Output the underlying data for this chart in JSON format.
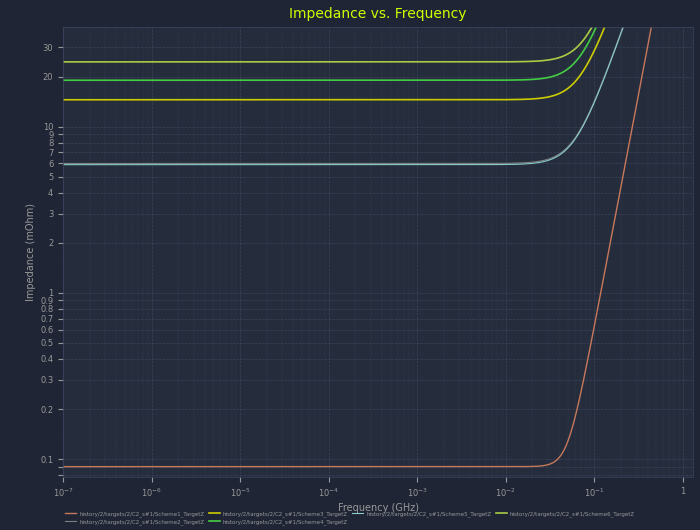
{
  "title": "Impedance vs. Frequency",
  "xlabel": "Frequency (GHz)",
  "ylabel": "Impedance (mOhm)",
  "bg_color": "#1f2535",
  "plot_bg_color": "#252d3d",
  "grid_color": "#3d4560",
  "title_color": "#ccff00",
  "axis_label_color": "#999999",
  "tick_color": "#999999",
  "lines": [
    {
      "label": "history/2/targets/2/C2_s#1/Scheme1_TargetZ",
      "color": "#c8785a",
      "flat_val": 0.09,
      "rise_freq": 0.05,
      "power": 2.8,
      "lw": 1.0
    },
    {
      "label": "history/2/targets/2/C2_s#1/Scheme2_TargetZ",
      "color": "#808080",
      "flat_val": 6.0,
      "rise_freq": 0.06,
      "power": 1.5,
      "lw": 0.8
    },
    {
      "label": "history/2/targets/2/C2_s#1/Scheme3_TargetZ",
      "color": "#cccc00",
      "flat_val": 14.5,
      "rise_freq": 0.07,
      "power": 1.5,
      "lw": 1.2
    },
    {
      "label": "history/2/targets/2/C2_s#1/Scheme4_TargetZ",
      "color": "#44cc44",
      "flat_val": 19.0,
      "rise_freq": 0.07,
      "power": 1.5,
      "lw": 1.2
    },
    {
      "label": "history/2/targets/2/C2_s#1/Scheme5_TargetZ",
      "color": "#88cccc",
      "flat_val": 5.9,
      "rise_freq": 0.06,
      "power": 1.5,
      "lw": 0.8
    },
    {
      "label": "history/2/targets/2/C2_s#1/Scheme6_TargetZ",
      "color": "#aacc44",
      "flat_val": 24.5,
      "rise_freq": 0.08,
      "power": 1.5,
      "lw": 1.2
    }
  ],
  "x_ticks": [
    1e-07,
    1e-06,
    1e-05,
    0.0001,
    0.001,
    0.01,
    0.1,
    1
  ],
  "x_tick_labels": [
    "10⁻⁷",
    "10⁻⁶",
    "10⁻⁵",
    "10⁻⁴",
    "10⁻³",
    "10⁻²",
    "10⁻¹",
    "1"
  ],
  "y_ticks": [
    0.08,
    0.09,
    0.1,
    0.2,
    0.3,
    0.4,
    0.5,
    0.6,
    0.7,
    0.8,
    0.9,
    1,
    2,
    3,
    4,
    5,
    6,
    7,
    8,
    9,
    10,
    20,
    30
  ],
  "y_tick_labels": [
    "",
    "",
    "0.1",
    "0.2",
    "0.3",
    "0.4",
    "0.5",
    "0.6",
    "0.7",
    "0.8",
    "0.9",
    "1",
    "2",
    "3",
    "4",
    "5",
    "6",
    "7",
    "8",
    "9",
    "10",
    "20",
    "30"
  ]
}
